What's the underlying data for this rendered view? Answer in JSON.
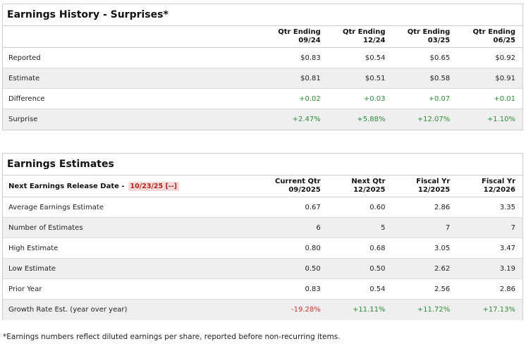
{
  "history": {
    "title": "Earnings History - Surprises*",
    "columns": [
      {
        "line1": "Qtr Ending",
        "line2": "09/24"
      },
      {
        "line1": "Qtr Ending",
        "line2": "12/24"
      },
      {
        "line1": "Qtr Ending",
        "line2": "03/25"
      },
      {
        "line1": "Qtr Ending",
        "line2": "06/25"
      }
    ],
    "rows": [
      {
        "label": "Reported",
        "values": [
          "$0.83",
          "$0.54",
          "$0.65",
          "$0.92"
        ]
      },
      {
        "label": "Estimate",
        "values": [
          "$0.81",
          "$0.51",
          "$0.58",
          "$0.91"
        ]
      },
      {
        "label": "Difference",
        "values": [
          "+0.02",
          "+0.03",
          "+0.07",
          "+0.01"
        ]
      },
      {
        "label": "Surprise",
        "values": [
          "+2.47%",
          "+5.88%",
          "+12.07%",
          "+1.10%"
        ]
      }
    ]
  },
  "estimates": {
    "title": "Earnings Estimates",
    "release_label": "Next Earnings Release Date -",
    "release_date": "10/23/25 [--]",
    "columns": [
      {
        "line1": "Current Qtr",
        "line2": "09/2025"
      },
      {
        "line1": "Next Qtr",
        "line2": "12/2025"
      },
      {
        "line1": "Fiscal Yr",
        "line2": "12/2025"
      },
      {
        "line1": "Fiscal Yr",
        "line2": "12/2026"
      }
    ],
    "rows": [
      {
        "label": "Average Earnings Estimate",
        "values": [
          "0.67",
          "0.60",
          "2.86",
          "3.35"
        ]
      },
      {
        "label": "Number of Estimates",
        "values": [
          "6",
          "5",
          "7",
          "7"
        ]
      },
      {
        "label": "High Estimate",
        "values": [
          "0.80",
          "0.68",
          "3.05",
          "3.47"
        ]
      },
      {
        "label": "Low Estimate",
        "values": [
          "0.50",
          "0.50",
          "2.62",
          "3.19"
        ]
      },
      {
        "label": "Prior Year",
        "values": [
          "0.83",
          "0.54",
          "2.56",
          "2.86"
        ]
      },
      {
        "label": "Growth Rate Est. (year over year)",
        "values": [
          "-19.28%",
          "+11.11%",
          "+11.72%",
          "+17.13%"
        ]
      }
    ]
  },
  "footnote": "*Earnings numbers reflect diluted earnings per share, reported before non-recurring items.",
  "colors": {
    "positive": "#2e8b3a",
    "negative": "#c8342c",
    "badge_bg": "#f6d9d9",
    "badge_text": "#b3261e"
  }
}
